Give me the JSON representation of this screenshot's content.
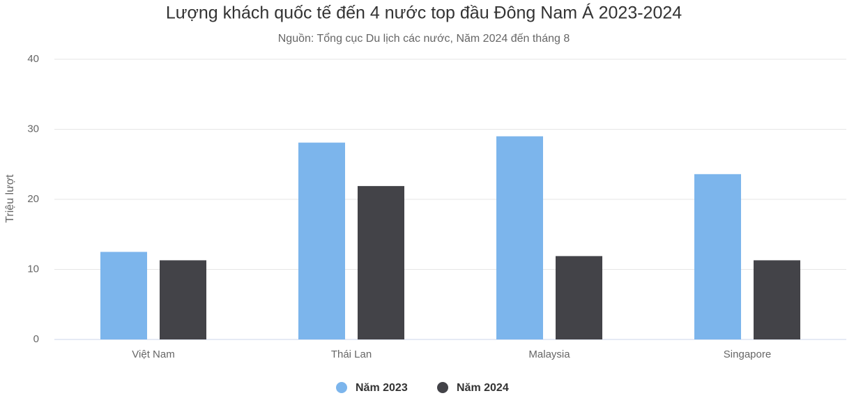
{
  "chart_data": {
    "type": "bar",
    "title": "Lượng khách quốc tế đến 4 nước top đầu Đông Nam Á 2023-2024",
    "subtitle": "Nguồn: Tổng cục Du lịch các nước, Năm 2024 đến tháng 8",
    "y_label": "Triệu lượt",
    "categories": [
      "Việt Nam",
      "Thái Lan",
      "Malaysia",
      "Singapore"
    ],
    "series": [
      {
        "name": "Năm 2023",
        "color": "#7cb5ec",
        "values": [
          12.5,
          28.1,
          29.0,
          23.6
        ]
      },
      {
        "name": "Năm 2024",
        "color": "#434348",
        "values": [
          11.3,
          21.9,
          11.9,
          11.3
        ]
      }
    ],
    "ylim": [
      0,
      40
    ],
    "yticks": [
      0,
      10,
      20,
      30,
      40
    ],
    "grid": true
  }
}
